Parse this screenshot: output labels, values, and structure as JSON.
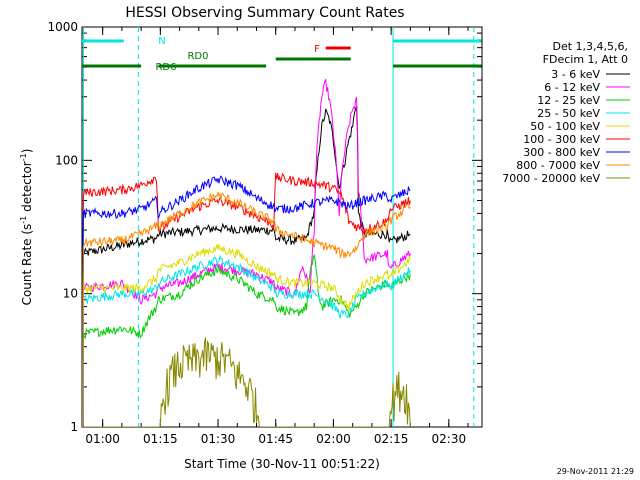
{
  "chart_data": {
    "type": "line",
    "title": "HESSI Observing Summary Count Rates",
    "xlabel": "Start Time (30-Nov-11 00:51:22)",
    "ylabel": "Count Rate (s⁻¹ detector⁻¹)",
    "ylabel_main": "Count Rate (s",
    "ylabel_sup1": "-1",
    "ylabel_mid": " detector",
    "ylabel_sup2": "-1",
    "ylabel_end": ")",
    "y_scale": "log",
    "ylim": [
      1,
      1000
    ],
    "xlim_minutes": [
      -5.37,
      98.63
    ],
    "x_ticks": [
      {
        "label": "01:00",
        "min": 0
      },
      {
        "label": "01:15",
        "min": 15
      },
      {
        "label": "01:30",
        "min": 30
      },
      {
        "label": "01:45",
        "min": 45
      },
      {
        "label": "02:00",
        "min": 60
      },
      {
        "label": "02:15",
        "min": 75
      },
      {
        "label": "02:30",
        "min": 90
      }
    ],
    "y_ticks": [
      {
        "label": "1",
        "value": 1
      },
      {
        "label": "10",
        "value": 10
      },
      {
        "label": "100",
        "value": 100
      },
      {
        "label": "1000",
        "value": 1000
      }
    ],
    "legend_header": [
      "Det 1,3,4,5,6,",
      "FDecim 1, Att 0"
    ],
    "legend_position": "right-outside",
    "series": [
      {
        "name": "3 - 6 keV",
        "color": "#000000",
        "points": [
          [
            -5.2,
            0
          ],
          [
            -5,
            20
          ],
          [
            5,
            23
          ],
          [
            10,
            25
          ],
          [
            14,
            26
          ],
          [
            14.5,
            28
          ],
          [
            20,
            29
          ],
          [
            30,
            31
          ],
          [
            40,
            30
          ],
          [
            44.5,
            30
          ],
          [
            45,
            26
          ],
          [
            50,
            25
          ],
          [
            53,
            26
          ],
          [
            55,
            40
          ],
          [
            56,
            100
          ],
          [
            57,
            180
          ],
          [
            58,
            230
          ],
          [
            59,
            200
          ],
          [
            60,
            140
          ],
          [
            61,
            80
          ],
          [
            61.5,
            62
          ],
          [
            63,
            100
          ],
          [
            65,
            180
          ],
          [
            66,
            270
          ],
          [
            66.5,
            40
          ],
          [
            68,
            28
          ],
          [
            74,
            28
          ],
          [
            74.5,
            24
          ],
          [
            80,
            28
          ]
        ]
      },
      {
        "name": "6 - 12 keV",
        "color": "#ff00ff",
        "points": [
          [
            -5.2,
            0
          ],
          [
            -5,
            11
          ],
          [
            5,
            12
          ],
          [
            10,
            9
          ],
          [
            14,
            10
          ],
          [
            14.5,
            11
          ],
          [
            20,
            12
          ],
          [
            30,
            16
          ],
          [
            40,
            14
          ],
          [
            44.5,
            12
          ],
          [
            45,
            11
          ],
          [
            50,
            10
          ],
          [
            52,
            16
          ],
          [
            54,
            10
          ],
          [
            55,
            30
          ],
          [
            56,
            150
          ],
          [
            57,
            300
          ],
          [
            58,
            380
          ],
          [
            59,
            280
          ],
          [
            60,
            160
          ],
          [
            61,
            70
          ],
          [
            61.5,
            40
          ],
          [
            63,
            120
          ],
          [
            65,
            240
          ],
          [
            66,
            280
          ],
          [
            66.5,
            60
          ],
          [
            68,
            18
          ],
          [
            74,
            20
          ],
          [
            74.5,
            15
          ],
          [
            80,
            20
          ]
        ]
      },
      {
        "name": "12 - 25 keV",
        "color": "#00cc00",
        "points": [
          [
            -5.2,
            0
          ],
          [
            -5,
            5
          ],
          [
            5,
            5.5
          ],
          [
            10,
            5
          ],
          [
            14,
            8
          ],
          [
            14.5,
            9
          ],
          [
            20,
            10
          ],
          [
            25,
            13
          ],
          [
            30,
            15
          ],
          [
            35,
            13
          ],
          [
            40,
            10
          ],
          [
            44.5,
            9
          ],
          [
            45,
            8
          ],
          [
            50,
            7
          ],
          [
            53,
            8
          ],
          [
            55,
            20
          ],
          [
            56,
            10
          ],
          [
            57,
            8
          ],
          [
            60,
            9
          ],
          [
            62,
            9
          ],
          [
            64,
            7
          ],
          [
            66,
            8
          ],
          [
            68,
            10
          ],
          [
            74,
            12
          ],
          [
            74.5,
            11
          ],
          [
            80,
            14
          ]
        ]
      },
      {
        "name": "25 - 50 keV",
        "color": "#00e5e5",
        "points": [
          [
            -5.2,
            0
          ],
          [
            -5,
            9
          ],
          [
            5,
            10
          ],
          [
            10,
            10
          ],
          [
            14,
            11
          ],
          [
            14.5,
            12
          ],
          [
            20,
            14
          ],
          [
            25,
            16
          ],
          [
            30,
            18
          ],
          [
            35,
            16
          ],
          [
            40,
            13
          ],
          [
            44.5,
            11
          ],
          [
            45,
            10
          ],
          [
            50,
            10
          ],
          [
            55,
            10
          ],
          [
            58,
            9
          ],
          [
            60,
            8
          ],
          [
            62,
            7
          ],
          [
            64,
            7
          ],
          [
            66,
            9
          ],
          [
            68,
            10
          ],
          [
            74,
            12
          ],
          [
            74.5,
            11
          ],
          [
            80,
            15
          ]
        ]
      },
      {
        "name": "50 - 100 keV",
        "color": "#dddd00",
        "points": [
          [
            -5.2,
            0
          ],
          [
            -5,
            11
          ],
          [
            5,
            11
          ],
          [
            10,
            11
          ],
          [
            14,
            13
          ],
          [
            14.5,
            15
          ],
          [
            20,
            17
          ],
          [
            25,
            20
          ],
          [
            30,
            22
          ],
          [
            35,
            20
          ],
          [
            40,
            16
          ],
          [
            44.5,
            14
          ],
          [
            45,
            13
          ],
          [
            50,
            12
          ],
          [
            55,
            12
          ],
          [
            60,
            11
          ],
          [
            62,
            9
          ],
          [
            64,
            8
          ],
          [
            66,
            10
          ],
          [
            68,
            12
          ],
          [
            74,
            14
          ],
          [
            74.5,
            13
          ],
          [
            80,
            18
          ]
        ]
      },
      {
        "name": "100 - 300 keV",
        "color": "#ff0000",
        "points": [
          [
            -5.2,
            0
          ],
          [
            -5,
            57
          ],
          [
            5,
            60
          ],
          [
            10,
            65
          ],
          [
            14,
            75
          ],
          [
            14.5,
            30
          ],
          [
            20,
            38
          ],
          [
            25,
            45
          ],
          [
            30,
            50
          ],
          [
            35,
            45
          ],
          [
            40,
            38
          ],
          [
            44.5,
            33
          ],
          [
            45,
            75
          ],
          [
            50,
            70
          ],
          [
            55,
            68
          ],
          [
            60,
            62
          ],
          [
            62,
            55
          ],
          [
            64,
            35
          ],
          [
            66,
            32
          ],
          [
            68,
            30
          ],
          [
            74,
            35
          ],
          [
            74.5,
            42
          ],
          [
            80,
            50
          ]
        ]
      },
      {
        "name": "300 - 800 keV",
        "color": "#0000ff",
        "points": [
          [
            -5.2,
            0
          ],
          [
            -5,
            40
          ],
          [
            5,
            40
          ],
          [
            10,
            43
          ],
          [
            14,
            50
          ],
          [
            14.5,
            40
          ],
          [
            20,
            50
          ],
          [
            25,
            62
          ],
          [
            30,
            72
          ],
          [
            35,
            65
          ],
          [
            40,
            52
          ],
          [
            44.5,
            45
          ],
          [
            45,
            43
          ],
          [
            50,
            44
          ],
          [
            55,
            48
          ],
          [
            60,
            50
          ],
          [
            62,
            48
          ],
          [
            64,
            45
          ],
          [
            66,
            48
          ],
          [
            68,
            50
          ],
          [
            74,
            55
          ],
          [
            74.5,
            50
          ],
          [
            80,
            60
          ]
        ]
      },
      {
        "name": "800 - 7000 keV",
        "color": "#ff8800",
        "points": [
          [
            -5.2,
            0
          ],
          [
            -5,
            24
          ],
          [
            5,
            25
          ],
          [
            10,
            28
          ],
          [
            14,
            32
          ],
          [
            14.5,
            32
          ],
          [
            20,
            40
          ],
          [
            25,
            48
          ],
          [
            30,
            55
          ],
          [
            35,
            48
          ],
          [
            40,
            40
          ],
          [
            44.5,
            35
          ],
          [
            45,
            30
          ],
          [
            50,
            27
          ],
          [
            55,
            24
          ],
          [
            60,
            22
          ],
          [
            62,
            20
          ],
          [
            64,
            20
          ],
          [
            66,
            22
          ],
          [
            68,
            28
          ],
          [
            74,
            32
          ],
          [
            74.5,
            35
          ],
          [
            80,
            45
          ]
        ]
      },
      {
        "name": "7000 - 20000 keV",
        "color": "#888800",
        "points": [
          [
            -5.2,
            1
          ],
          [
            15,
            1
          ],
          [
            16,
            1.8
          ],
          [
            18,
            2.5
          ],
          [
            20,
            3
          ],
          [
            24,
            3.2
          ],
          [
            27,
            3.5
          ],
          [
            30,
            3.3
          ],
          [
            32,
            3.2
          ],
          [
            35,
            2.5
          ],
          [
            38,
            2
          ],
          [
            40,
            1.4
          ],
          [
            41,
            1
          ],
          [
            74,
            1
          ],
          [
            75,
            1.5
          ],
          [
            77,
            2
          ],
          [
            79,
            1.8
          ],
          [
            80,
            1
          ]
        ]
      }
    ],
    "annotations": [
      {
        "label": "N",
        "color": "#00e5e5",
        "row": 1,
        "segments": [
          [
            -5.37,
            5.5
          ],
          [
            75.5,
            98.5
          ]
        ]
      },
      {
        "label": "F",
        "color": "#ee0000",
        "row": 2,
        "segments": [
          [
            58,
            64.5
          ]
        ]
      },
      {
        "label": "RD0",
        "color": "#007700",
        "row": 3,
        "segments": [
          [
            45,
            64.5
          ]
        ]
      },
      {
        "label": "RD6",
        "color": "#007700",
        "row": 4,
        "segments": [
          [
            -5.37,
            10
          ],
          [
            75.5,
            98.5
          ]
        ]
      }
    ],
    "saa_boundaries": [
      -5.0,
      75.5
    ],
    "night_boundaries": [
      9.3,
      96.5
    ],
    "rd6_extra": [
      [
        14.5,
        42.5
      ]
    ],
    "timestamp": "29-Nov-2011 21:29"
  }
}
